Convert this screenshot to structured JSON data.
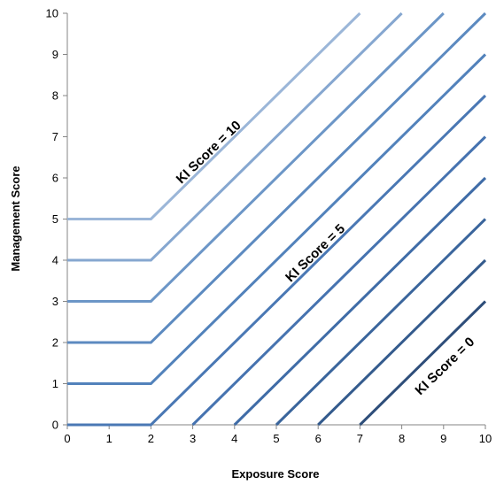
{
  "chart_data": {
    "type": "line",
    "title": "",
    "xlabel": "Exposure Score",
    "ylabel": "Management Score",
    "xlim": [
      0,
      10
    ],
    "ylim": [
      0,
      10
    ],
    "xticks": [
      "0",
      "1",
      "2",
      "3",
      "4",
      "5",
      "6",
      "7",
      "8",
      "9",
      "10"
    ],
    "yticks": [
      "0",
      "1",
      "2",
      "3",
      "4",
      "5",
      "6",
      "7",
      "8",
      "9",
      "10"
    ],
    "grid": false,
    "legend": "none",
    "series": [
      {
        "color": "#2e4e7a",
        "points": [
          [
            7,
            0
          ],
          [
            10,
            3
          ]
        ]
      },
      {
        "color": "#345b8d",
        "points": [
          [
            6,
            0
          ],
          [
            10,
            4
          ]
        ]
      },
      {
        "color": "#3a659c",
        "points": [
          [
            5,
            0
          ],
          [
            10,
            5
          ]
        ]
      },
      {
        "color": "#3f6ca7",
        "points": [
          [
            4,
            0
          ],
          [
            10,
            6
          ]
        ]
      },
      {
        "color": "#4673b0",
        "points": [
          [
            3,
            0
          ],
          [
            10,
            7
          ]
        ]
      },
      {
        "color": "#4a78b4",
        "points": [
          [
            0,
            0
          ],
          [
            2,
            0
          ],
          [
            10,
            8
          ]
        ]
      },
      {
        "color": "#5282bb",
        "points": [
          [
            0,
            1
          ],
          [
            2,
            1
          ],
          [
            10,
            9
          ]
        ]
      },
      {
        "color": "#5c8ac0",
        "points": [
          [
            0,
            2
          ],
          [
            2,
            2
          ],
          [
            10,
            10
          ]
        ]
      },
      {
        "color": "#6c96c7",
        "points": [
          [
            0,
            3
          ],
          [
            2,
            3
          ],
          [
            9,
            10
          ]
        ]
      },
      {
        "color": "#86a7d0",
        "points": [
          [
            0,
            4
          ],
          [
            2,
            4
          ],
          [
            8,
            10
          ]
        ]
      },
      {
        "color": "#9bb6d8",
        "points": [
          [
            0,
            5
          ],
          [
            2,
            5
          ],
          [
            7,
            10
          ]
        ]
      }
    ],
    "annotations": [
      {
        "text": "KI Score = 10",
        "x": 3.45,
        "y": 6.55,
        "angle": -44
      },
      {
        "text": "KI Score = 5",
        "x": 6.0,
        "y": 4.1,
        "angle": -44
      },
      {
        "text": "KI Score = 0",
        "x": 9.1,
        "y": 1.35,
        "angle": -44
      }
    ]
  }
}
